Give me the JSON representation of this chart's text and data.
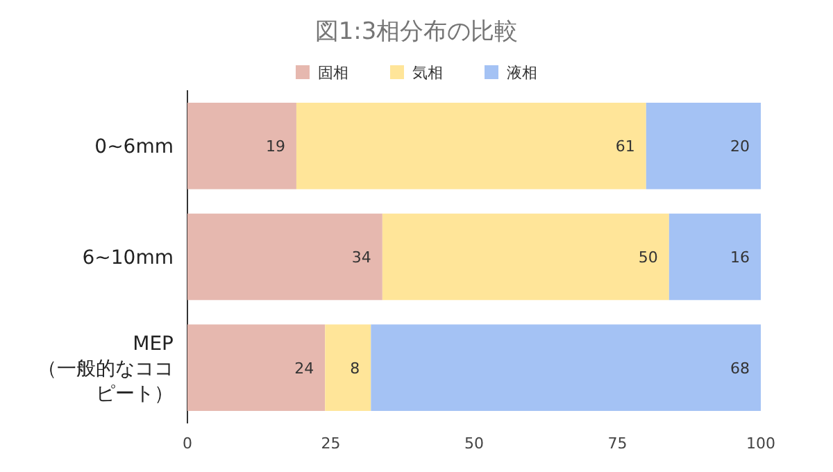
{
  "chart_data": {
    "type": "bar",
    "orientation": "horizontal",
    "stacked": true,
    "title": "図1:3相分布の比較",
    "categories": [
      "0~6mm",
      "6~10mm",
      "MEP （一般的なココピート）"
    ],
    "series": [
      {
        "name": "固相",
        "color": "#e6b8af",
        "values": [
          19,
          34,
          24
        ]
      },
      {
        "name": "気相",
        "color": "#ffe599",
        "values": [
          61,
          50,
          8
        ]
      },
      {
        "name": "液相",
        "color": "#a4c2f4",
        "values": [
          20,
          16,
          68
        ]
      }
    ],
    "xlim": [
      0,
      100
    ],
    "xticks": [
      0,
      25,
      50,
      75,
      100
    ],
    "data_labels": true,
    "legend": "top",
    "grid": false
  }
}
